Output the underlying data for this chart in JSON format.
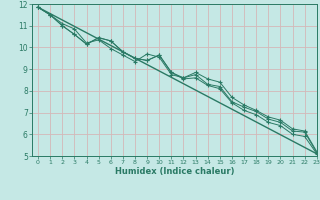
{
  "title": "",
  "xlabel": "Humidex (Indice chaleur)",
  "bg_color": "#c5e8e5",
  "grid_color": "#d4b8b8",
  "line_color": "#2a7a65",
  "xlim": [
    -0.5,
    23
  ],
  "ylim": [
    5,
    12
  ],
  "xticks": [
    0,
    1,
    2,
    3,
    4,
    5,
    6,
    7,
    8,
    9,
    10,
    11,
    12,
    13,
    14,
    15,
    16,
    17,
    18,
    19,
    20,
    21,
    22,
    23
  ],
  "yticks": [
    5,
    6,
    7,
    8,
    9,
    10,
    11,
    12
  ],
  "series1_x": [
    0,
    1,
    2,
    3,
    4,
    5,
    6,
    7,
    8,
    9,
    10,
    11,
    12,
    13,
    14,
    15,
    16,
    17,
    18,
    19,
    20,
    21,
    22,
    23
  ],
  "series1_y": [
    11.85,
    11.5,
    11.1,
    10.85,
    10.2,
    10.35,
    9.95,
    9.65,
    9.35,
    9.7,
    9.55,
    8.75,
    8.6,
    8.75,
    8.3,
    8.2,
    7.5,
    7.25,
    7.05,
    6.7,
    6.55,
    6.15,
    6.1,
    5.15
  ],
  "series2_x": [
    0,
    1,
    2,
    3,
    4,
    5,
    6,
    7,
    8,
    9,
    10,
    11,
    12,
    13,
    14,
    15,
    16,
    17,
    18,
    19,
    20,
    21,
    22,
    23
  ],
  "series2_y": [
    11.85,
    11.5,
    11.0,
    10.6,
    10.15,
    10.45,
    10.3,
    9.8,
    9.5,
    9.4,
    9.65,
    8.85,
    8.6,
    8.85,
    8.55,
    8.4,
    7.7,
    7.35,
    7.1,
    6.8,
    6.65,
    6.25,
    6.15,
    5.2
  ],
  "series3_x": [
    0,
    1,
    2,
    3,
    4,
    5,
    6,
    7,
    8,
    9,
    10,
    11,
    12,
    13,
    14,
    15,
    16,
    17,
    18,
    19,
    20,
    21,
    22,
    23
  ],
  "series3_y": [
    11.85,
    11.5,
    11.0,
    10.6,
    10.15,
    10.45,
    10.3,
    9.8,
    9.5,
    9.4,
    9.65,
    8.85,
    8.55,
    8.6,
    8.25,
    8.1,
    7.45,
    7.1,
    6.9,
    6.55,
    6.4,
    6.0,
    5.9,
    5.1
  ],
  "trend_x": [
    0,
    23
  ],
  "trend_y": [
    11.85,
    5.1
  ]
}
